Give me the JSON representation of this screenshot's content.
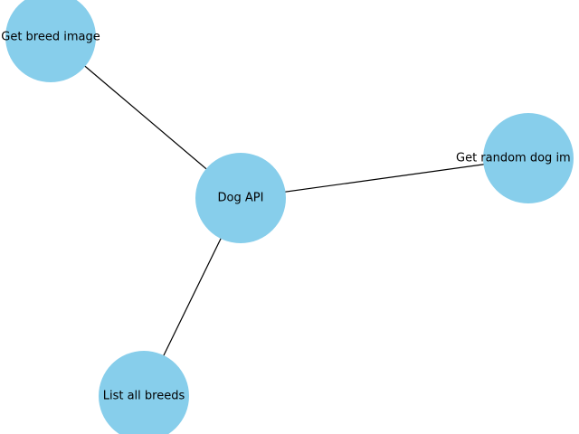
{
  "graph": {
    "node_color": "#87CEEB",
    "edge_color": "#000000",
    "label_color": "#000000",
    "nodes": [
      {
        "id": "dog-api",
        "label": "Dog API"
      },
      {
        "id": "get-breed-image",
        "label": "Get breed image"
      },
      {
        "id": "get-random-dog-image",
        "label": "Get random dog im"
      },
      {
        "id": "list-all-breeds",
        "label": "List all breeds"
      }
    ],
    "edges": [
      {
        "source": "dog-api",
        "target": "get-breed-image"
      },
      {
        "source": "dog-api",
        "target": "get-random-dog-image"
      },
      {
        "source": "dog-api",
        "target": "list-all-breeds"
      }
    ]
  }
}
